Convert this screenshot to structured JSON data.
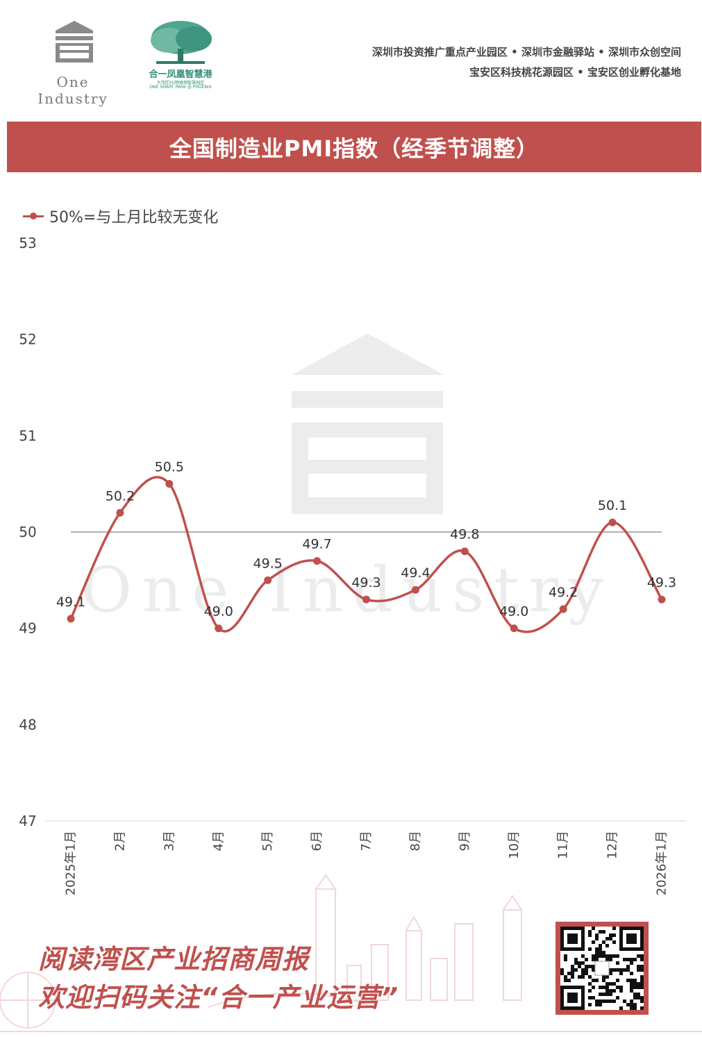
{
  "header": {
    "logo_text": "One Industry",
    "park_name": "合一凤凰智慧港",
    "park_sub1": "大湾区5G物联网智慧园区",
    "park_sub2": "ONE SMART PARK @ PHOENIX",
    "tagline_line1": "深圳市投资推广重点产业园区 • 深圳市金融驿站 • 深圳市众创空间",
    "tagline_line2": "宝安区科技桃花源园区 • 宝安区创业孵化基地"
  },
  "banner": {
    "title": "全国制造业PMI指数（经季节调整）"
  },
  "colors": {
    "accent": "#c0504d",
    "reference_line": "#808080",
    "axis_text": "#444444"
  },
  "chart_data": {
    "type": "line",
    "title": "全国制造业PMI指数（经季节调整）",
    "categories": [
      "2025年1月",
      "2月",
      "3月",
      "4月",
      "5月",
      "6月",
      "7月",
      "8月",
      "9月",
      "10月",
      "11月",
      "12月",
      "2026年1月"
    ],
    "series": [
      {
        "name": "50%=与上月比较无变化",
        "values": [
          49.1,
          50.2,
          50.5,
          49.0,
          49.5,
          49.7,
          49.3,
          49.4,
          49.8,
          49.0,
          49.2,
          50.1,
          49.3
        ]
      }
    ],
    "data_labels": [
      "49.1",
      "50.2",
      "50.5",
      "49.0",
      "49.5",
      "49.7",
      "49.3",
      "49.4",
      "49.8",
      "49.0",
      "49.2",
      "50.1",
      "49.3"
    ],
    "ylim": [
      47,
      53
    ],
    "yticks": [
      47,
      48,
      49,
      50,
      51,
      52,
      53
    ],
    "reference_line": 50,
    "smooth": true,
    "legend_position": "top-left",
    "grid": false
  },
  "watermark": {
    "text": "One Industry"
  },
  "footer": {
    "promo_line1": "阅读湾区产业招商周报",
    "promo_line2": "欢迎扫码关注“合一产业运营”",
    "qr_icon": "qr-code-icon"
  }
}
